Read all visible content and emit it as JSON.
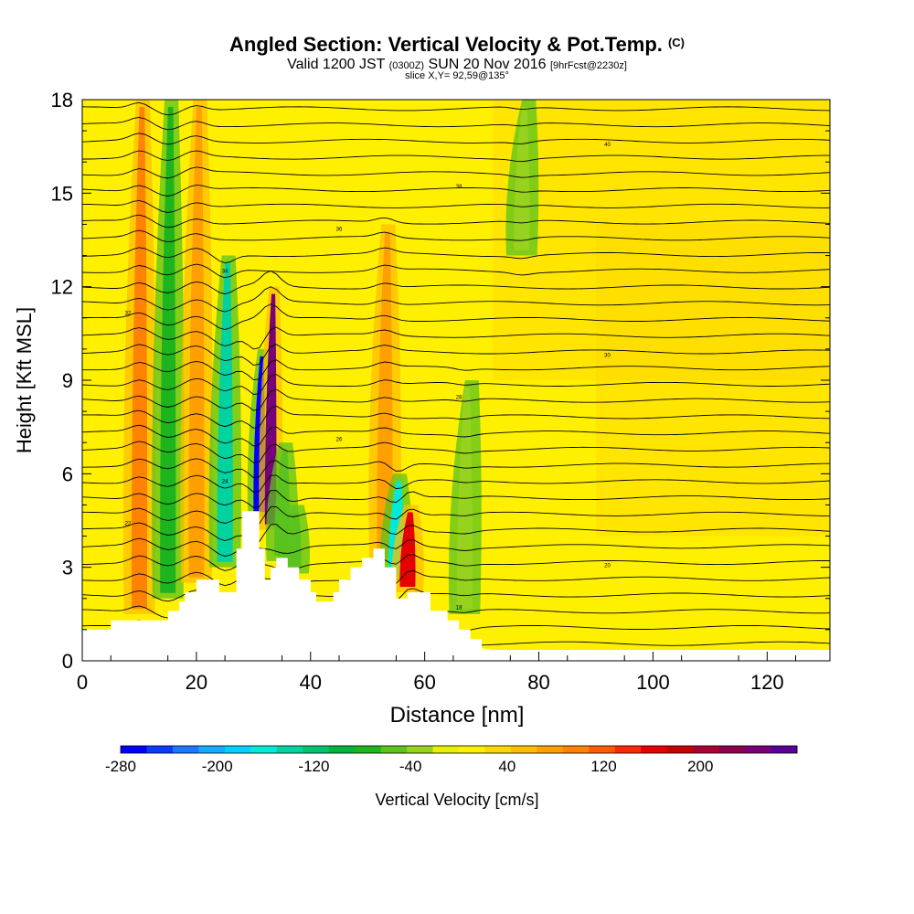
{
  "header": {
    "title": "Angled Section: Vertical Velocity & Pot.Temp.",
    "copyright": "(C)",
    "valid_time": "Valid 1200 JST",
    "utc_time": "(0300Z)",
    "date": "SUN 20 Nov 2016",
    "forecast": "[9hrFcst@2230z]",
    "slice": "slice X,Y= 92,59@135°"
  },
  "chart_data": {
    "type": "heatmap",
    "title": "Angled Section: Vertical Velocity & Pot.Temp.",
    "xlabel": "Distance [nm]",
    "ylabel": "Height [Kft MSL]",
    "xlim": [
      0,
      131
    ],
    "ylim": [
      0,
      18
    ],
    "x_ticks": [
      0,
      20,
      40,
      60,
      80,
      100,
      120
    ],
    "y_ticks": [
      0,
      3,
      6,
      9,
      12,
      15,
      18
    ],
    "grid": false,
    "background_field_cm_s": 20,
    "terrain": {
      "x": [
        0,
        5,
        5,
        9,
        9,
        13,
        13,
        15,
        15,
        17,
        17,
        18,
        18,
        20,
        20,
        24,
        24,
        27,
        27,
        28,
        28,
        29,
        29,
        31,
        31,
        32,
        32,
        33,
        33,
        34,
        34,
        36,
        36,
        38,
        38,
        40,
        40,
        41,
        41,
        44,
        44,
        45,
        45,
        47,
        47,
        49,
        49,
        51,
        51,
        53,
        53,
        55,
        55,
        57,
        57,
        59,
        59,
        61,
        61,
        64,
        64,
        66,
        66,
        68,
        68,
        70,
        70,
        72,
        131
      ],
      "y": [
        1.0,
        1.0,
        1.3,
        1.3,
        1.3,
        1.3,
        1.3,
        1.3,
        1.6,
        1.6,
        1.9,
        1.9,
        2.2,
        2.2,
        2.6,
        2.6,
        2.2,
        2.2,
        3.6,
        3.6,
        4.8,
        4.8,
        4.8,
        4.8,
        3.6,
        3.6,
        2.6,
        2.6,
        3.0,
        3.0,
        3.3,
        3.3,
        3.0,
        3.0,
        2.6,
        2.6,
        2.2,
        2.2,
        1.9,
        1.9,
        2.2,
        2.2,
        2.6,
        2.6,
        3.0,
        3.0,
        3.3,
        3.3,
        3.6,
        3.6,
        3.0,
        3.0,
        2.0,
        2.0,
        2.2,
        2.2,
        2.2,
        2.2,
        1.6,
        1.6,
        1.3,
        1.3,
        1.0,
        1.0,
        0.7,
        0.7,
        0.4,
        0.35,
        0.35
      ]
    },
    "vertical_velocity_features": [
      {
        "x": 10,
        "y_range": [
          1.5,
          18
        ],
        "value": 100
      },
      {
        "x": 15,
        "y_range": [
          2.0,
          18
        ],
        "value": -80
      },
      {
        "x": 20,
        "y_range": [
          2.5,
          18
        ],
        "value": 80
      },
      {
        "x": 25,
        "y_range": [
          3.0,
          13
        ],
        "value": -140
      },
      {
        "x": 31,
        "y_range": [
          4.6,
          10
        ],
        "value": -280
      },
      {
        "x": 33,
        "y_range": [
          4.2,
          12
        ],
        "value": 240
      },
      {
        "x": 35,
        "y_range": [
          3.2,
          7
        ],
        "value": -60
      },
      {
        "x": 37,
        "y_range": [
          2.8,
          5
        ],
        "value": -60
      },
      {
        "x": 53,
        "y_range": [
          3.2,
          14
        ],
        "value": 80
      },
      {
        "x": 55,
        "y_range": [
          2.6,
          6
        ],
        "value": -160
      },
      {
        "x": 57,
        "y_range": [
          2.2,
          5
        ],
        "value": 160
      },
      {
        "x": 67,
        "y_range": [
          1.5,
          9
        ],
        "value": -40
      },
      {
        "x": 77,
        "y_range": [
          13,
          18
        ],
        "value": -40
      }
    ],
    "isentrope_labels": [
      "40",
      "38",
      "36",
      "34",
      "32",
      "30",
      "28",
      "26",
      "24",
      "22",
      "20",
      "18"
    ],
    "colorbar": {
      "label": "Vertical Velocity [cm/s]",
      "tick_labels": [
        "-280",
        "-200",
        "-120",
        "-40",
        "40",
        "120",
        "200"
      ],
      "tick_values": [
        -280,
        -200,
        -120,
        -40,
        40,
        120,
        200
      ],
      "colors": [
        "#0000ff",
        "#0a3cff",
        "#1e78ff",
        "#14aaff",
        "#00d2ff",
        "#00ebd7",
        "#00d2a0",
        "#00c36e",
        "#00b43c",
        "#1eb41e",
        "#5ac31e",
        "#96d21e",
        "#e6f000",
        "#fff000",
        "#ffd700",
        "#ffbe00",
        "#ffa000",
        "#ff8200",
        "#ff5a00",
        "#ff2800",
        "#e60000",
        "#c80000",
        "#aa0032",
        "#8c0050",
        "#780078",
        "#5a0096"
      ]
    }
  }
}
